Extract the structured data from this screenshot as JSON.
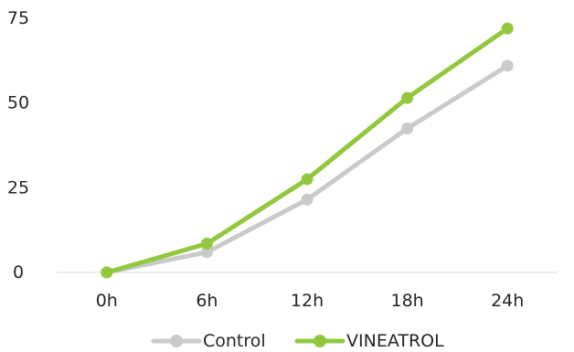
{
  "chart_data": {
    "type": "line",
    "title": "",
    "xlabel": "",
    "ylabel": "",
    "categories": [
      "0h",
      "6h",
      "12h",
      "18h",
      "24h"
    ],
    "yticks": [
      0,
      25,
      50,
      75
    ],
    "ylim": [
      0,
      75
    ],
    "grid": false,
    "legend_position": "bottom",
    "series": [
      {
        "name": "Control",
        "color": "#c9cbca",
        "values": [
          0,
          6,
          21.5,
          42.5,
          61
        ]
      },
      {
        "name": "VINEATROL",
        "color": "#92c83e",
        "values": [
          0,
          8.5,
          27.5,
          51.5,
          72
        ]
      }
    ]
  }
}
